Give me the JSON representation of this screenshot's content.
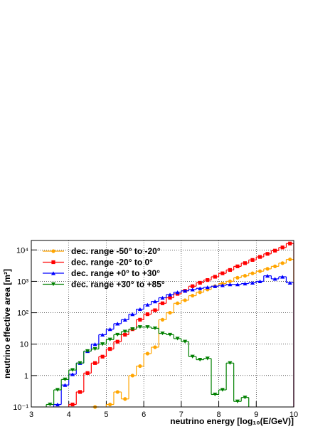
{
  "chart_data": {
    "type": "histogram",
    "xlabel": "neutrino energy [log₁₀(E/GeV)]",
    "ylabel": "neutrino effective area [m²]",
    "bins": [
      3.0,
      3.2,
      3.4,
      3.6,
      3.8,
      4.0,
      4.2,
      4.4,
      4.6,
      4.8,
      5.0,
      5.2,
      5.4,
      5.6,
      5.8,
      6.0,
      6.2,
      6.4,
      6.6,
      6.8,
      7.0,
      7.2,
      7.4,
      7.6,
      7.8,
      8.0,
      8.2,
      8.4,
      8.6,
      8.8,
      9.0,
      9.2,
      9.4,
      9.6,
      9.8,
      10.0
    ],
    "log_y": true,
    "grid": true,
    "legend_position": "upper left",
    "xlim": [
      3,
      10
    ],
    "ylim": [
      0.1,
      20000
    ],
    "xticks": [
      3,
      4,
      5,
      6,
      7,
      8,
      9,
      10
    ],
    "yticks": [
      {
        "value": 0.1,
        "label": "10⁻¹"
      },
      1,
      10,
      {
        "value": 100,
        "label": "10²"
      },
      {
        "value": 1000,
        "label": "10³"
      },
      {
        "value": 10000,
        "label": "10⁴"
      }
    ],
    "series": [
      {
        "name": "dec. range -50° to -20°",
        "color": "#ffa500",
        "marker": "circle",
        "values": [
          null,
          null,
          null,
          null,
          null,
          null,
          null,
          null,
          0.1,
          null,
          0.12,
          0.3,
          0.18,
          1,
          2,
          5,
          8,
          60,
          100,
          200,
          250,
          350,
          450,
          550,
          700,
          850,
          1000,
          1300,
          1500,
          1800,
          2100,
          2500,
          3000,
          3800,
          5000
        ]
      },
      {
        "name": "dec. range -20° to 0°",
        "color": "#ff0000",
        "marker": "square",
        "values": [
          null,
          null,
          null,
          null,
          null,
          0.12,
          0.3,
          1.2,
          2.5,
          4,
          7,
          12,
          20,
          30,
          60,
          90,
          120,
          200,
          300,
          400,
          500,
          700,
          900,
          1100,
          1400,
          1800,
          2300,
          3000,
          3800,
          4800,
          6000,
          7500,
          9500,
          12000,
          16000
        ]
      },
      {
        "name": "dec. range +0° to +30°",
        "color": "#0000ff",
        "marker": "triangle-up",
        "values": [
          null,
          null,
          null,
          0.12,
          0.5,
          1.1,
          2.5,
          6,
          10,
          20,
          30,
          45,
          60,
          90,
          130,
          180,
          230,
          300,
          380,
          450,
          500,
          550,
          600,
          650,
          700,
          750,
          800,
          800,
          850,
          900,
          1000,
          1500,
          1200,
          1400,
          900
        ]
      },
      {
        "name": "dec. range +30° to +85°",
        "color": "#008000",
        "marker": "triangle-down",
        "values": [
          null,
          null,
          0.12,
          0.35,
          0.75,
          1.5,
          2.5,
          6,
          7,
          10,
          14,
          20,
          25,
          30,
          35,
          35,
          32,
          22,
          20,
          15,
          12,
          4,
          3.2,
          3.5,
          0.25,
          0.35,
          2.5,
          0.15,
          0.2,
          null,
          null,
          null,
          null,
          null,
          null
        ]
      }
    ]
  }
}
